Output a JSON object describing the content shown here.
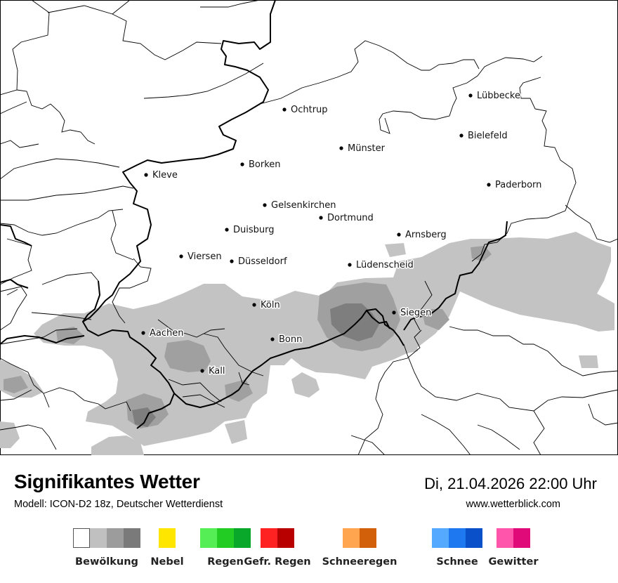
{
  "header": {
    "title": "Signifikantes Wetter",
    "model": "Modell: ICON-D2 18z, Deutscher Wetterdienst",
    "datetime": "Di, 21.04.2026 22:00 Uhr",
    "website": "www.wetterblick.com"
  },
  "cities": [
    {
      "name": "Lübbecke"
    },
    {
      "name": "Ochtrup"
    },
    {
      "name": "Bielefeld"
    },
    {
      "name": "Münster"
    },
    {
      "name": "Borken"
    },
    {
      "name": "Kleve"
    },
    {
      "name": "Paderborn"
    },
    {
      "name": "Gelsenkirchen"
    },
    {
      "name": "Dortmund"
    },
    {
      "name": "Duisburg"
    },
    {
      "name": "Arnsberg"
    },
    {
      "name": "Viersen"
    },
    {
      "name": "Düsseldorf"
    },
    {
      "name": "Lüdenscheid"
    },
    {
      "name": "Köln"
    },
    {
      "name": "Siegen"
    },
    {
      "name": "Aachen"
    },
    {
      "name": "Bonn"
    },
    {
      "name": "Kall"
    }
  ],
  "legend": [
    {
      "label": "Bewölkung",
      "colors": [
        "#ffffff",
        "#c0c0c0",
        "#9c9c9c",
        "#7a7a7a"
      ]
    },
    {
      "label": "Nebel",
      "colors": [
        "#ffe600"
      ]
    },
    {
      "label": "Regen",
      "colors": [
        "#55ee55",
        "#22cc22",
        "#0aa82a"
      ]
    },
    {
      "label": "Gefr. Regen",
      "colors": [
        "#ff2222",
        "#b80000"
      ]
    },
    {
      "label": "Schneeregen",
      "colors": [
        "#ffa54f",
        "#d2600a"
      ]
    },
    {
      "label": "Schnee",
      "colors": [
        "#55aaff",
        "#1e78f0",
        "#0a50c8"
      ]
    },
    {
      "label": "Gewitter",
      "colors": [
        "#ff55aa",
        "#e00a78"
      ]
    }
  ],
  "colors": {
    "cloud_light": "#c3c3c3",
    "cloud_medium": "#a0a0a0",
    "cloud_dark": "#7e7e7e",
    "border": "#000000"
  }
}
